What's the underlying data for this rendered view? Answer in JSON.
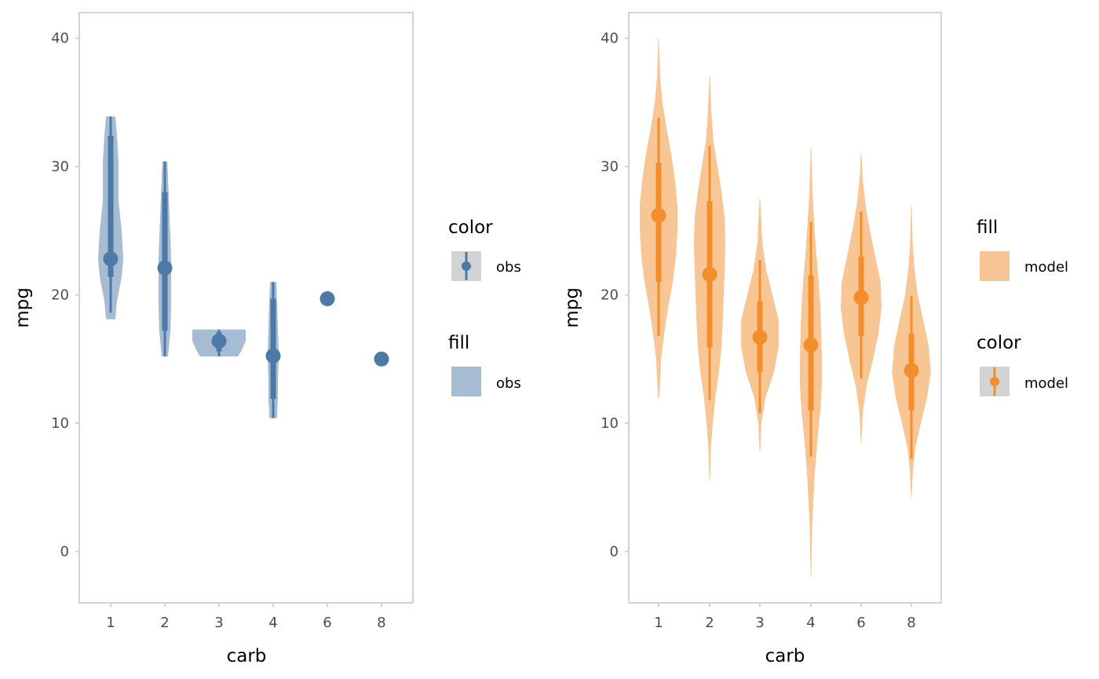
{
  "colors": {
    "obs": "#4e79a7",
    "model": "#f28e2b",
    "panel_border": "#d3d3d3",
    "key_bg": "#d3d3d3"
  },
  "chart_data": [
    {
      "type": "violin",
      "ylabel": "mpg",
      "xlabel": "carb",
      "categories": [
        "1",
        "2",
        "3",
        "4",
        "6",
        "8"
      ],
      "yticks": [
        0,
        10,
        20,
        30,
        40
      ],
      "ylim": [
        -4,
        42
      ],
      "grid": false,
      "legend": [
        {
          "title": "color",
          "key": "pointinterval",
          "label": "obs"
        },
        {
          "title": "fill",
          "key": "fill",
          "label": "obs"
        }
      ],
      "series": [
        {
          "name": "obs",
          "color": "obs",
          "fill_opacity": 0.5,
          "points": [
            {
              "x": "1",
              "median": 22.8,
              "inner": [
                21.4,
                32.4
              ],
              "outer": [
                18.6,
                33.9
              ],
              "violin": [
                [
                  18.1,
                  0.15
                ],
                [
                  19.5,
                  0.2
                ],
                [
                  21.4,
                  0.35
                ],
                [
                  22.8,
                  0.4
                ],
                [
                  25,
                  0.35
                ],
                [
                  27.3,
                  0.25
                ],
                [
                  30.4,
                  0.25
                ],
                [
                  32.4,
                  0.2
                ],
                [
                  33.9,
                  0.15
                ]
              ]
            },
            {
              "x": "2",
              "median": 22.1,
              "inner": [
                17.2,
                28
              ],
              "outer": [
                15.2,
                30.4
              ],
              "violin": [
                [
                  15.2,
                  0.1
                ],
                [
                  17.2,
                  0.18
                ],
                [
                  19.2,
                  0.2
                ],
                [
                  21.5,
                  0.2
                ],
                [
                  22.8,
                  0.2
                ],
                [
                  24.4,
                  0.18
                ],
                [
                  26,
                  0.15
                ],
                [
                  28,
                  0.12
                ],
                [
                  30.4,
                  0.08
                ]
              ]
            },
            {
              "x": "3",
              "median": 16.4,
              "inner": [
                15.6,
                17.1
              ],
              "outer": [
                15.2,
                17.3
              ],
              "violin": [
                [
                  15.2,
                  0.6
                ],
                [
                  15.6,
                  0.7
                ],
                [
                  16.4,
                  0.85
                ],
                [
                  17.1,
                  0.85
                ],
                [
                  17.3,
                  0.85
                ]
              ]
            },
            {
              "x": "4",
              "median": 15.25,
              "inner": [
                11.9,
                19.7
              ],
              "outer": [
                10.4,
                21
              ],
              "violin": [
                [
                  10.4,
                  0.12
                ],
                [
                  11.9,
                  0.15
                ],
                [
                  13.3,
                  0.15
                ],
                [
                  14.7,
                  0.17
                ],
                [
                  15.8,
                  0.17
                ],
                [
                  17.5,
                  0.15
                ],
                [
                  19.2,
                  0.13
                ],
                [
                  21,
                  0.1
                ]
              ]
            },
            {
              "x": "6",
              "median": 19.7,
              "inner": [
                19.7,
                19.7
              ],
              "outer": [
                19.7,
                19.7
              ],
              "violin": []
            },
            {
              "x": "8",
              "median": 15.0,
              "inner": [
                15.0,
                15.0
              ],
              "outer": [
                15.0,
                15.0
              ],
              "violin": []
            }
          ]
        }
      ]
    },
    {
      "type": "violin",
      "ylabel": "mpg",
      "xlabel": "carb",
      "categories": [
        "1",
        "2",
        "3",
        "4",
        "6",
        "8"
      ],
      "yticks": [
        0,
        10,
        20,
        30,
        40
      ],
      "ylim": [
        -4,
        42
      ],
      "grid": false,
      "legend": [
        {
          "title": "fill",
          "key": "fill",
          "label": "model"
        },
        {
          "title": "color",
          "key": "pointinterval",
          "label": "model"
        }
      ],
      "series": [
        {
          "name": "model",
          "color": "model",
          "fill_opacity": 0.5,
          "points": [
            {
              "x": "1",
              "median": 26.2,
              "inner": [
                21,
                30.3
              ],
              "outer": [
                16.8,
                33.8
              ],
              "violin": [
                [
                  12,
                  0.02
                ],
                [
                  15,
                  0.08
                ],
                [
                  17,
                  0.18
                ],
                [
                  19,
                  0.3
                ],
                [
                  21,
                  0.45
                ],
                [
                  23,
                  0.55
                ],
                [
                  25,
                  0.6
                ],
                [
                  27,
                  0.6
                ],
                [
                  29,
                  0.52
                ],
                [
                  31,
                  0.4
                ],
                [
                  33,
                  0.25
                ],
                [
                  35,
                  0.12
                ],
                [
                  37,
                  0.05
                ],
                [
                  40,
                  0.01
                ]
              ]
            },
            {
              "x": "2",
              "median": 21.6,
              "inner": [
                15.9,
                27.3
              ],
              "outer": [
                11.8,
                31.6
              ],
              "violin": [
                [
                  5.5,
                  0.01
                ],
                [
                  8,
                  0.04
                ],
                [
                  10,
                  0.1
                ],
                [
                  12,
                  0.18
                ],
                [
                  14,
                  0.3
                ],
                [
                  16,
                  0.38
                ],
                [
                  18,
                  0.42
                ],
                [
                  20,
                  0.45
                ],
                [
                  22,
                  0.48
                ],
                [
                  24,
                  0.5
                ],
                [
                  26,
                  0.48
                ],
                [
                  28,
                  0.38
                ],
                [
                  30,
                  0.25
                ],
                [
                  32,
                  0.12
                ],
                [
                  34,
                  0.06
                ],
                [
                  37,
                  0.01
                ]
              ]
            },
            {
              "x": "3",
              "median": 16.7,
              "inner": [
                14,
                19.5
              ],
              "outer": [
                10.8,
                22.7
              ],
              "violin": [
                [
                  7.8,
                  0.01
                ],
                [
                  10,
                  0.05
                ],
                [
                  12,
                  0.18
                ],
                [
                  14,
                  0.45
                ],
                [
                  16,
                  0.6
                ],
                [
                  18,
                  0.6
                ],
                [
                  20,
                  0.4
                ],
                [
                  22,
                  0.2
                ],
                [
                  24,
                  0.08
                ],
                [
                  27.5,
                  0.01
                ]
              ]
            },
            {
              "x": "4",
              "median": 16.1,
              "inner": [
                11,
                21.5
              ],
              "outer": [
                7.4,
                25.7
              ],
              "violin": [
                [
                  -2,
                  0.01
                ],
                [
                  2,
                  0.04
                ],
                [
                  6,
                  0.12
                ],
                [
                  9,
                  0.22
                ],
                [
                  11,
                  0.3
                ],
                [
                  13,
                  0.35
                ],
                [
                  15,
                  0.35
                ],
                [
                  17,
                  0.33
                ],
                [
                  19,
                  0.3
                ],
                [
                  21,
                  0.25
                ],
                [
                  23,
                  0.18
                ],
                [
                  25,
                  0.12
                ],
                [
                  28,
                  0.05
                ],
                [
                  31.5,
                  0.01
                ]
              ]
            },
            {
              "x": "6",
              "median": 19.8,
              "inner": [
                16.8,
                23
              ],
              "outer": [
                13.5,
                26.5
              ],
              "violin": [
                [
                  8.5,
                  0.01
                ],
                [
                  11,
                  0.06
                ],
                [
                  13,
                  0.18
                ],
                [
                  15,
                  0.38
                ],
                [
                  17,
                  0.55
                ],
                [
                  19,
                  0.65
                ],
                [
                  21,
                  0.62
                ],
                [
                  23,
                  0.45
                ],
                [
                  25,
                  0.28
                ],
                [
                  27,
                  0.14
                ],
                [
                  29,
                  0.05
                ],
                [
                  31,
                  0.01
                ]
              ]
            },
            {
              "x": "8",
              "median": 14.1,
              "inner": [
                11,
                17
              ],
              "outer": [
                7.2,
                19.9
              ],
              "violin": [
                [
                  4.2,
                  0.01
                ],
                [
                  6,
                  0.04
                ],
                [
                  8,
                  0.12
                ],
                [
                  10,
                  0.3
                ],
                [
                  12,
                  0.5
                ],
                [
                  14,
                  0.62
                ],
                [
                  16,
                  0.55
                ],
                [
                  18,
                  0.38
                ],
                [
                  20,
                  0.2
                ],
                [
                  22,
                  0.1
                ],
                [
                  24,
                  0.04
                ],
                [
                  27,
                  0.01
                ]
              ]
            }
          ]
        }
      ]
    }
  ]
}
